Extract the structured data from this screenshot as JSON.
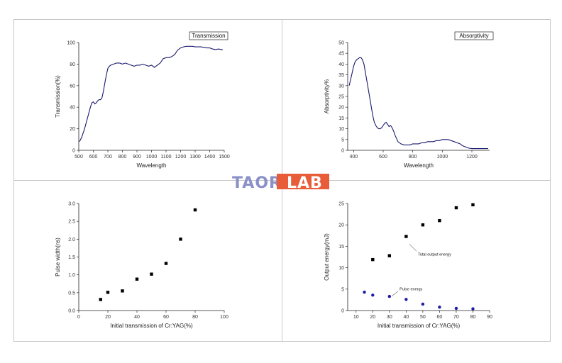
{
  "watermark": {
    "text": "TAOR",
    "box_text": "LAB",
    "color": "#8a90c8",
    "box_color": "#e85c3a"
  },
  "chart_data": [
    {
      "id": "transmission",
      "type": "line",
      "legend": "Transmission",
      "xlabel": "Wavelength",
      "ylabel": "Transmission(%)",
      "xlim": [
        500,
        1500
      ],
      "ylim": [
        0,
        100
      ],
      "xticks": [
        500,
        600,
        700,
        800,
        900,
        1000,
        1100,
        1200,
        1300,
        1400,
        1500
      ],
      "yticks": [
        0,
        20,
        40,
        60,
        80,
        100
      ],
      "color": "#1a1a6e",
      "x": [
        505,
        520,
        540,
        560,
        580,
        590,
        600,
        610,
        620,
        630,
        640,
        650,
        660,
        670,
        680,
        690,
        700,
        710,
        720,
        740,
        760,
        780,
        800,
        820,
        840,
        860,
        880,
        900,
        920,
        940,
        960,
        980,
        1000,
        1020,
        1040,
        1060,
        1080,
        1100,
        1120,
        1140,
        1160,
        1180,
        1200,
        1220,
        1240,
        1260,
        1280,
        1300,
        1320,
        1340,
        1360,
        1380,
        1400,
        1420,
        1440,
        1460,
        1480,
        1490
      ],
      "y": [
        8,
        12,
        20,
        30,
        40,
        44,
        45,
        43,
        44,
        46,
        47,
        47,
        49,
        55,
        63,
        70,
        76,
        78,
        79,
        80,
        81,
        81,
        80,
        81,
        80,
        79,
        78,
        79,
        79,
        80,
        79,
        78,
        79,
        77,
        79,
        81,
        85,
        86,
        86,
        87,
        89,
        93,
        95,
        96,
        96.5,
        96.5,
        96.5,
        96,
        96,
        96,
        95.5,
        95,
        95,
        94,
        93.5,
        94,
        93.5,
        93.5
      ]
    },
    {
      "id": "absorptivity",
      "type": "line",
      "legend": "Absorptivity",
      "xlabel": "Wavelength",
      "ylabel": "Absorptivity%",
      "xlim": [
        360,
        1320
      ],
      "ylim": [
        0,
        50
      ],
      "xticks": [
        400,
        600,
        800,
        1000,
        1200
      ],
      "yticks": [
        0,
        5,
        10,
        15,
        20,
        25,
        30,
        35,
        40,
        45,
        50
      ],
      "color": "#1a1a6e",
      "x": [
        370,
        380,
        390,
        400,
        410,
        420,
        430,
        440,
        450,
        460,
        470,
        480,
        490,
        500,
        510,
        520,
        530,
        540,
        550,
        560,
        570,
        580,
        590,
        600,
        610,
        620,
        630,
        640,
        650,
        660,
        670,
        680,
        700,
        720,
        740,
        760,
        780,
        800,
        820,
        840,
        860,
        880,
        900,
        920,
        940,
        960,
        980,
        1000,
        1020,
        1040,
        1060,
        1080,
        1100,
        1120,
        1140,
        1160,
        1180,
        1200,
        1240,
        1280,
        1310
      ],
      "y": [
        30,
        33,
        36,
        39,
        41,
        42,
        42.5,
        43,
        43,
        42,
        40,
        36,
        32,
        28,
        24,
        20,
        16,
        13,
        11.5,
        10.5,
        10,
        10,
        10.5,
        11.5,
        12.5,
        13,
        12,
        11,
        11.5,
        10.5,
        9,
        7,
        4,
        3,
        2.5,
        2.5,
        2.5,
        3,
        3,
        3,
        3.5,
        3.5,
        4,
        4,
        4,
        4.5,
        4.5,
        5,
        5,
        5,
        4.5,
        4,
        3.5,
        3,
        2,
        1.5,
        1,
        0.8,
        0.8,
        0.8,
        0.8
      ]
    },
    {
      "id": "pulse-width",
      "type": "scatter",
      "xlabel": "Initial transmission of Cr:YAG(%)",
      "ylabel": "Pulse width(ns)",
      "xlim": [
        0,
        100
      ],
      "ylim": [
        0,
        3.0
      ],
      "xticks": [
        0,
        20,
        40,
        60,
        80,
        100
      ],
      "yticks": [
        0.0,
        0.5,
        1.0,
        1.5,
        2.0,
        2.5,
        3.0
      ],
      "ytick_labels": [
        "0.0",
        "0.5",
        "1.0",
        "1.5",
        "2.0",
        "2.5",
        "3.0"
      ],
      "color": "#000000",
      "x": [
        15,
        20,
        30,
        40,
        50,
        60,
        70,
        80
      ],
      "y": [
        0.31,
        0.51,
        0.55,
        0.88,
        1.02,
        1.32,
        2.0,
        2.82
      ]
    },
    {
      "id": "output-energy",
      "type": "scatter",
      "xlabel": "Initial transmission of Cr:YAG(%)",
      "ylabel": "Output energy(mJ)",
      "xlim": [
        5,
        90
      ],
      "ylim": [
        0,
        25
      ],
      "xticks": [
        10,
        20,
        30,
        40,
        50,
        60,
        70,
        80,
        90
      ],
      "yticks": [
        0,
        5,
        10,
        15,
        20,
        25
      ],
      "series": [
        {
          "name": "Total output energy",
          "color": "#000000",
          "marker": "square",
          "x": [
            20,
            30,
            40,
            50,
            60,
            70,
            80
          ],
          "y": [
            11.9,
            12.8,
            17.3,
            20.0,
            21.0,
            24.0,
            24.7
          ]
        },
        {
          "name": "Pulse energy",
          "color": "#1c1ca8",
          "marker": "circle",
          "x": [
            15,
            20,
            30,
            40,
            50,
            60,
            70,
            80
          ],
          "y": [
            4.3,
            3.6,
            3.3,
            2.6,
            1.5,
            0.8,
            0.5,
            0.4
          ]
        }
      ],
      "annotations": [
        {
          "text": "Total output energy",
          "at_x": 42,
          "at_y": 15.5
        },
        {
          "text": "Pulse energy",
          "at_x": 31,
          "at_y": 3.7
        }
      ]
    }
  ]
}
